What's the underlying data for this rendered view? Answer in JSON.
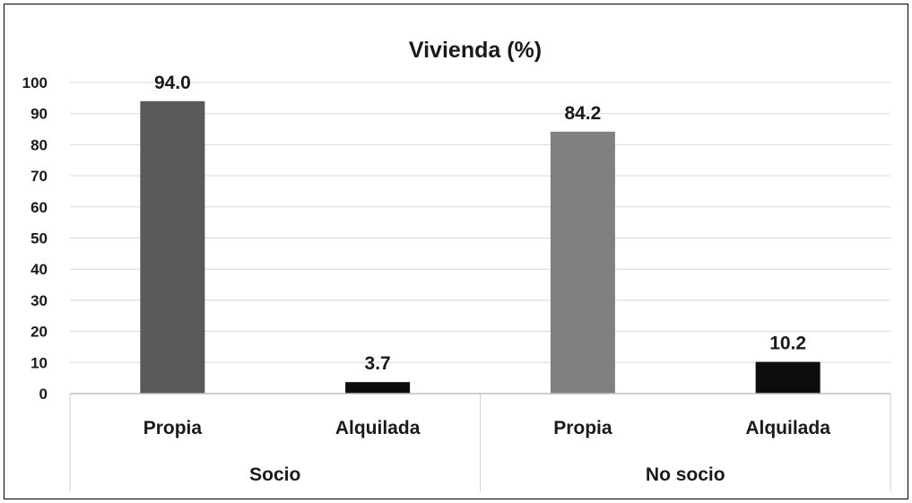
{
  "chart_data": {
    "type": "bar",
    "title": "Vivienda (%)",
    "xlabel": "",
    "ylabel": "",
    "ylim": [
      0,
      100
    ],
    "yticks": [
      0,
      10,
      20,
      30,
      40,
      50,
      60,
      70,
      80,
      90,
      100
    ],
    "grid": true,
    "groups": [
      {
        "label": "Socio",
        "categories": [
          "Propia",
          "Alquilada"
        ],
        "values": [
          94.0,
          3.7
        ],
        "data_labels": [
          "94.0",
          "3.7"
        ]
      },
      {
        "label": "No socio",
        "categories": [
          "Propia",
          "Alquilada"
        ],
        "values": [
          84.2,
          10.2
        ],
        "data_labels": [
          "84.2",
          "10.2"
        ]
      }
    ],
    "bar_colors": [
      "#595959",
      "#0d0d0d",
      "#808080",
      "#0d0d0d"
    ],
    "legend": "none"
  }
}
